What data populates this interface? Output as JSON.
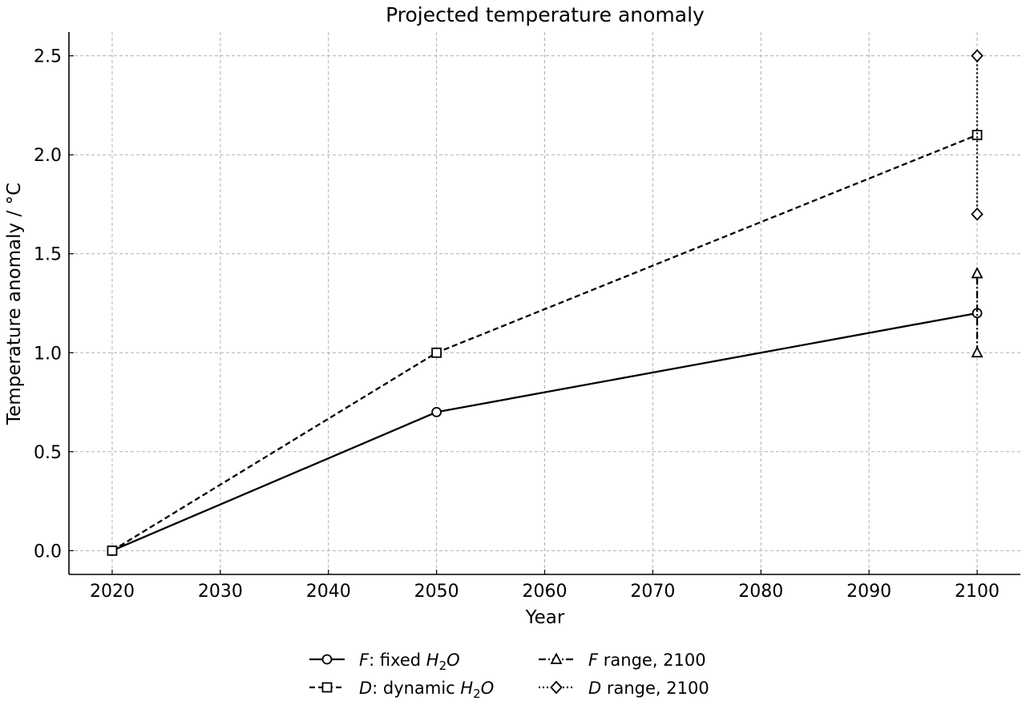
{
  "chart_data": {
    "type": "line",
    "title": "Projected temperature anomaly",
    "xlabel": "Year",
    "ylabel": "Temperature anomaly / °C",
    "xlim": [
      2016,
      2104
    ],
    "ylim": [
      -0.12,
      2.62
    ],
    "xticks": [
      2020,
      2030,
      2040,
      2050,
      2060,
      2070,
      2080,
      2090,
      2100
    ],
    "yticks": [
      0.0,
      0.5,
      1.0,
      1.5,
      2.0,
      2.5
    ],
    "ytick_labels": [
      "0.0",
      "0.5",
      "1.0",
      "1.5",
      "2.0",
      "2.5"
    ],
    "grid": true,
    "legend_position": "bottom-center",
    "series": [
      {
        "key": "F",
        "name_italic": "F",
        "name_rest": ": fixed ",
        "name_chem": [
          "H",
          "2",
          "O"
        ],
        "x": [
          2020,
          2050,
          2100
        ],
        "y": [
          0.0,
          0.7,
          1.2
        ],
        "line": "solid",
        "marker": "circle",
        "color": "#000000"
      },
      {
        "key": "D",
        "name_italic": "D",
        "name_rest": ": dynamic ",
        "name_chem": [
          "H",
          "2",
          "O"
        ],
        "x": [
          2020,
          2050,
          2100
        ],
        "y": [
          0.0,
          1.0,
          2.1
        ],
        "line": "dashed",
        "marker": "square",
        "color": "#000000"
      },
      {
        "key": "F-range",
        "name_italic": "F",
        "name_rest": " range, 2100",
        "x": [
          2100,
          2100
        ],
        "y": [
          1.0,
          1.4
        ],
        "line": "dashdot",
        "marker": "triangle",
        "color": "#000000"
      },
      {
        "key": "D-range",
        "name_italic": "D",
        "name_rest": " range, 2100",
        "x": [
          2100,
          2100
        ],
        "y": [
          1.7,
          2.5
        ],
        "line": "dotted",
        "marker": "diamond",
        "color": "#000000"
      }
    ]
  }
}
